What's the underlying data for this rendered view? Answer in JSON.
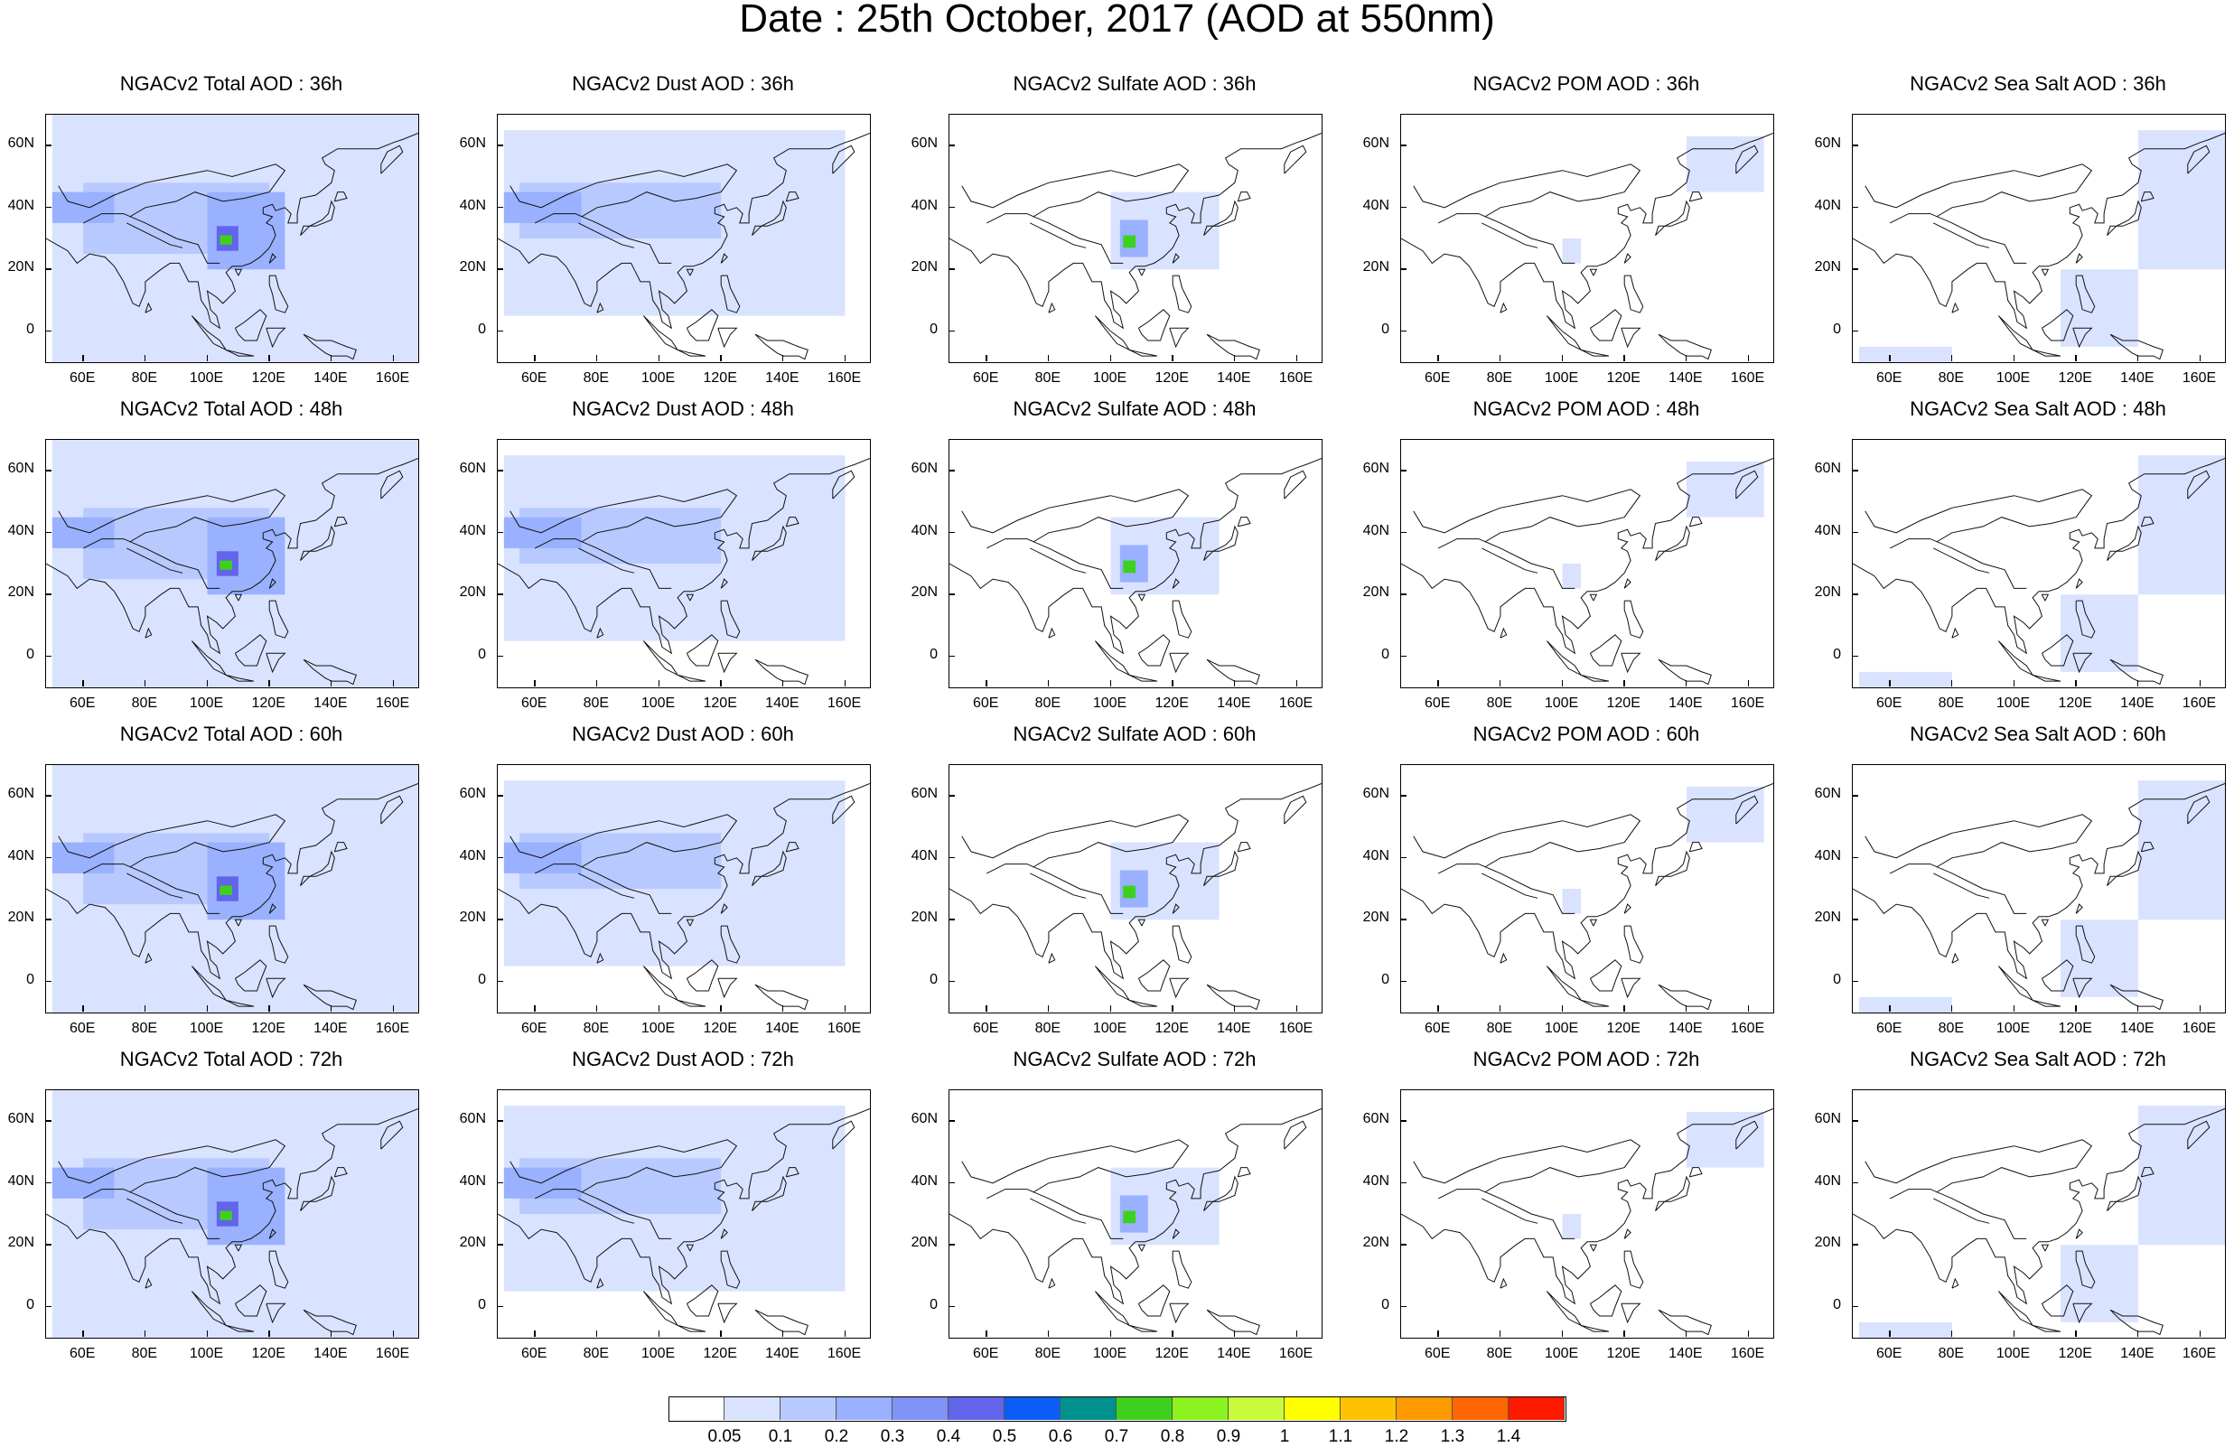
{
  "page": {
    "title": "Date : 25th October, 2017 (AOD at 550nm)"
  },
  "panel_titles": [
    [
      "NGACv2 Total AOD : 36h",
      "NGACv2 Dust AOD : 36h",
      "NGACv2 Sulfate AOD : 36h",
      "NGACv2 POM AOD : 36h",
      "NGACv2 Sea Salt AOD : 36h"
    ],
    [
      "NGACv2 Total AOD : 48h",
      "NGACv2 Dust AOD : 48h",
      "NGACv2 Sulfate AOD : 48h",
      "NGACv2 POM AOD : 48h",
      "NGACv2 Sea Salt AOD : 48h"
    ],
    [
      "NGACv2 Total AOD : 60h",
      "NGACv2 Dust AOD : 60h",
      "NGACv2 Sulfate AOD : 60h",
      "NGACv2 POM AOD : 60h",
      "NGACv2 Sea Salt AOD : 60h"
    ],
    [
      "NGACv2 Total AOD : 72h",
      "NGACv2 Dust AOD : 72h",
      "NGACv2 Sulfate AOD : 72h",
      "NGACv2 POM AOD : 72h",
      "NGACv2 Sea Salt  AOD : 72h"
    ]
  ],
  "axes": {
    "lon_range": [
      48,
      168
    ],
    "lat_range": [
      -10,
      70
    ],
    "x_ticks": [
      60,
      80,
      100,
      120,
      140,
      160
    ],
    "x_tick_labels": [
      "60E",
      "80E",
      "100E",
      "120E",
      "140E",
      "160E"
    ],
    "y_ticks": [
      0,
      20,
      40,
      60
    ],
    "y_tick_labels": [
      "0",
      "20N",
      "40N",
      "60N"
    ]
  },
  "colorbar": {
    "labels": [
      "0.05",
      "0.1",
      "0.2",
      "0.3",
      "0.4",
      "0.5",
      "0.6",
      "0.7",
      "0.8",
      "0.9",
      "1",
      "1.1",
      "1.2",
      "1.3",
      "1.4"
    ],
    "colors": [
      "#ffffff",
      "#d9e3ff",
      "#b7c9ff",
      "#99b1ff",
      "#7f94f5",
      "#6265ea",
      "#0a5ef5",
      "#00908e",
      "#3dd11e",
      "#8cf21f",
      "#c8fc3a",
      "#ffff00",
      "#ffc200",
      "#ff9900",
      "#ff6600",
      "#ff1a00"
    ]
  },
  "coast_color": "#111111",
  "fields": {
    "total": [
      {
        "lon": [
          50,
          168
        ],
        "lat": [
          -10,
          70
        ],
        "level": 1
      },
      {
        "lon": [
          60,
          120
        ],
        "lat": [
          25,
          48
        ],
        "level": 2
      },
      {
        "lon": [
          100,
          125
        ],
        "lat": [
          20,
          45
        ],
        "level": 3
      },
      {
        "lon": [
          50,
          70
        ],
        "lat": [
          35,
          45
        ],
        "level": 3
      },
      {
        "lon": [
          103,
          110
        ],
        "lat": [
          26,
          34
        ],
        "level": 5
      },
      {
        "lon": [
          104,
          108
        ],
        "lat": [
          28,
          31
        ],
        "level": 8
      }
    ],
    "dust": [
      {
        "lon": [
          50,
          160
        ],
        "lat": [
          5,
          65
        ],
        "level": 1
      },
      {
        "lon": [
          55,
          120
        ],
        "lat": [
          30,
          48
        ],
        "level": 2
      },
      {
        "lon": [
          50,
          75
        ],
        "lat": [
          35,
          45
        ],
        "level": 3
      }
    ],
    "sulfate": [
      {
        "lon": [
          100,
          135
        ],
        "lat": [
          20,
          45
        ],
        "level": 1
      },
      {
        "lon": [
          103,
          112
        ],
        "lat": [
          24,
          36
        ],
        "level": 3
      },
      {
        "lon": [
          104,
          108
        ],
        "lat": [
          27,
          31
        ],
        "level": 8
      }
    ],
    "pom": [
      {
        "lon": [
          140,
          165
        ],
        "lat": [
          45,
          63
        ],
        "level": 1
      },
      {
        "lon": [
          100,
          106
        ],
        "lat": [
          22,
          30
        ],
        "level": 1
      }
    ],
    "seasalt": [
      {
        "lon": [
          140,
          168
        ],
        "lat": [
          20,
          65
        ],
        "level": 1
      },
      {
        "lon": [
          115,
          140
        ],
        "lat": [
          -5,
          20
        ],
        "level": 1
      },
      {
        "lon": [
          50,
          80
        ],
        "lat": [
          -10,
          -5
        ],
        "level": 1
      }
    ]
  }
}
